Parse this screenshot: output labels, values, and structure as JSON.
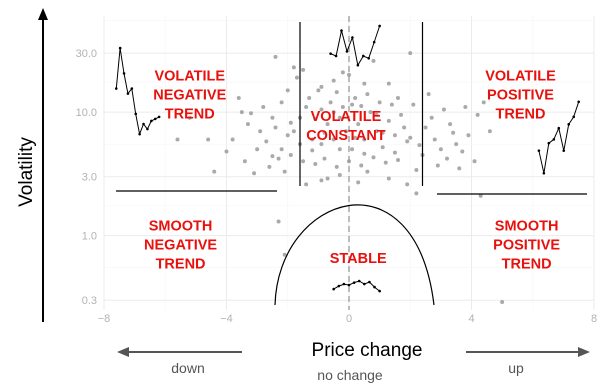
{
  "chart_data": {
    "type": "scatter",
    "xlabel": "Price change",
    "ylabel": "Volatility",
    "xlim": [
      -8,
      8
    ],
    "ylim": [
      0.25,
      60
    ],
    "y_scale": "log",
    "x_ticks": [
      {
        "value": -8,
        "label": "−8"
      },
      {
        "value": -4,
        "label": "−4"
      },
      {
        "value": 0,
        "label": "0"
      },
      {
        "value": 4,
        "label": "4"
      },
      {
        "value": 8,
        "label": "8"
      }
    ],
    "y_ticks": [
      {
        "value": 0.3,
        "label": "0.3"
      },
      {
        "value": 1.0,
        "label": "1.0"
      },
      {
        "value": 3.0,
        "label": "3.0"
      },
      {
        "value": 10.0,
        "label": "10.0"
      },
      {
        "value": 30.0,
        "label": "30.0"
      }
    ],
    "grid": true,
    "regions": [
      {
        "id": "volatile-negative-trend",
        "lines": [
          "VOLATILE",
          "NEGATIVE",
          "TREND"
        ],
        "x": -5.2,
        "y": 18
      },
      {
        "id": "volatile-constant",
        "lines": [
          "VOLATILE",
          "CONSTANT"
        ],
        "x": -0.1,
        "y": 8.5
      },
      {
        "id": "volatile-positive-trend",
        "lines": [
          "VOLATILE",
          "POSITIVE",
          "TREND"
        ],
        "x": 5.6,
        "y": 18
      },
      {
        "id": "smooth-negative-trend",
        "lines": [
          "SMOOTH",
          "NEGATIVE",
          "TREND"
        ],
        "x": -5.5,
        "y": 1.1
      },
      {
        "id": "stable",
        "lines": [
          "STABLE"
        ],
        "x": 0.3,
        "y": 0.6
      },
      {
        "id": "smooth-positive-trend",
        "lines": [
          "SMOOTH",
          "POSITIVE",
          "TREND"
        ],
        "x": 5.8,
        "y": 1.1
      }
    ],
    "direction_labels": {
      "down": "down",
      "no_change": "no change",
      "up": "up"
    },
    "points": [
      [
        -1.0,
        15
      ],
      [
        -1.6,
        9
      ],
      [
        -1.8,
        7
      ],
      [
        -1.4,
        11
      ],
      [
        -1.2,
        6
      ],
      [
        -0.9,
        5.5
      ],
      [
        -0.7,
        8
      ],
      [
        -0.5,
        6
      ],
      [
        -0.3,
        9
      ],
      [
        -0.1,
        7
      ],
      [
        0.1,
        5
      ],
      [
        0.3,
        8
      ],
      [
        0.5,
        6
      ],
      [
        0.7,
        10
      ],
      [
        0.9,
        7
      ],
      [
        1.1,
        5.2
      ],
      [
        1.3,
        8.5
      ],
      [
        1.5,
        6.5
      ],
      [
        1.7,
        9.5
      ],
      [
        1.9,
        5.8
      ],
      [
        -1.9,
        4.5
      ],
      [
        -1.5,
        4
      ],
      [
        -1.1,
        3.8
      ],
      [
        -0.8,
        4.2
      ],
      [
        -0.4,
        3.6
      ],
      [
        0.0,
        4.0
      ],
      [
        0.4,
        3.7
      ],
      [
        0.8,
        4.3
      ],
      [
        1.2,
        3.9
      ],
      [
        1.6,
        4.1
      ],
      [
        -0.6,
        12
      ],
      [
        0.2,
        13
      ],
      [
        0.6,
        14
      ],
      [
        -0.2,
        11
      ],
      [
        1.0,
        12
      ],
      [
        -1.3,
        13
      ],
      [
        1.4,
        11.5
      ],
      [
        -0.5,
        18
      ],
      [
        0.0,
        20
      ],
      [
        -1.7,
        19
      ],
      [
        -2.0,
        6.5
      ],
      [
        -2.2,
        5
      ],
      [
        -2.4,
        7.5
      ],
      [
        -2.1,
        3.3
      ],
      [
        -2.3,
        4.2
      ],
      [
        -2.5,
        9
      ],
      [
        -2.6,
        3.6
      ],
      [
        -2.2,
        12
      ],
      [
        -2.0,
        15
      ],
      [
        -2.8,
        11
      ],
      [
        2.0,
        6.2
      ],
      [
        2.3,
        5.4
      ],
      [
        2.5,
        7.5
      ],
      [
        2.2,
        3.4
      ],
      [
        2.4,
        4.5
      ],
      [
        2.7,
        9
      ],
      [
        2.9,
        3.7
      ],
      [
        2.1,
        11.5
      ],
      [
        2.6,
        14
      ],
      [
        3.0,
        5
      ],
      [
        3.2,
        4.2
      ],
      [
        3.3,
        8
      ],
      [
        3.5,
        5.5
      ],
      [
        3.6,
        3.5
      ],
      [
        3.8,
        11
      ],
      [
        3.9,
        6.5
      ],
      [
        4.1,
        4
      ],
      [
        4.2,
        9.5
      ],
      [
        4.4,
        12
      ],
      [
        4.6,
        7
      ],
      [
        -3.0,
        5
      ],
      [
        -3.3,
        8
      ],
      [
        -3.4,
        4
      ],
      [
        -3.6,
        13
      ],
      [
        -3.8,
        6
      ],
      [
        -3.1,
        3.2
      ],
      [
        -2.9,
        7
      ],
      [
        -3.5,
        10
      ],
      [
        -4.4,
        3.3
      ],
      [
        -4.6,
        6
      ],
      [
        -5.2,
        9
      ],
      [
        -5.6,
        6
      ],
      [
        -2.4,
        28
      ],
      [
        -1.8,
        23
      ],
      [
        -0.2,
        21
      ],
      [
        0.8,
        26
      ],
      [
        2.0,
        30
      ],
      [
        -1.5,
        22
      ],
      [
        1.3,
        17
      ],
      [
        -0.9,
        16
      ],
      [
        0.5,
        17
      ],
      [
        -0.7,
        2.9
      ],
      [
        0.3,
        2.7
      ],
      [
        -1.4,
        2.6
      ],
      [
        1.3,
        2.9
      ],
      [
        -0.5,
        10
      ],
      [
        0.9,
        9.5
      ],
      [
        -0.9,
        10.5
      ],
      [
        1.6,
        13
      ],
      [
        -1.6,
        5.5
      ],
      [
        -0.3,
        5.0
      ],
      [
        0.5,
        4.6
      ],
      [
        1.1,
        6.8
      ],
      [
        -1.1,
        8.8
      ],
      [
        0.2,
        6.2
      ],
      [
        -0.8,
        6.8
      ],
      [
        1.5,
        4.7
      ],
      [
        -1.2,
        4.9
      ],
      [
        0.6,
        3.3
      ],
      [
        -0.3,
        3.1
      ],
      [
        2.8,
        6.0
      ],
      [
        3.1,
        10.5
      ],
      [
        3.4,
        6.8
      ],
      [
        3.7,
        4.8
      ],
      [
        -2.7,
        5.8
      ],
      [
        -3.2,
        9.8
      ],
      [
        -2.5,
        4.4
      ],
      [
        -4.0,
        4.8
      ],
      [
        2.2,
        2.2
      ],
      [
        -2.3,
        1.3
      ],
      [
        -2.1,
        0.7
      ],
      [
        4.3,
        2.1
      ],
      [
        5.0,
        0.29
      ],
      [
        -0.9,
        2.8
      ],
      [
        1.9,
        2.6
      ],
      [
        0.1,
        11.5
      ],
      [
        -0.4,
        14.5
      ],
      [
        0.4,
        11.2
      ],
      [
        1.8,
        7.5
      ],
      [
        -1.9,
        8.2
      ]
    ],
    "sparklines": [
      {
        "id": "sparkline-volatile-negative",
        "x0": -7.6,
        "x1": -6.2,
        "y0": 5,
        "y1": 33,
        "values": [
          0.6,
          1.0,
          0.75,
          0.55,
          0.6,
          0.35,
          0.15,
          0.25,
          0.2,
          0.28,
          0.3,
          0.32
        ]
      },
      {
        "id": "sparkline-volatile-constant",
        "x0": -0.6,
        "x1": 1.0,
        "y0": 22,
        "y1": 52,
        "values": [
          0.35,
          0.3,
          0.85,
          0.4,
          0.7,
          0.1,
          0.3,
          0.25,
          0.6,
          0.95
        ]
      },
      {
        "id": "sparkline-volatile-positive",
        "x0": 6.2,
        "x1": 7.5,
        "y0": 3.2,
        "y1": 13,
        "values": [
          0.3,
          0.0,
          0.4,
          0.45,
          0.6,
          0.3,
          0.65,
          0.75,
          0.95
        ]
      },
      {
        "id": "sparkline-stable",
        "x0": -0.5,
        "x1": 1.0,
        "y0": 0.33,
        "y1": 0.48,
        "values": [
          0.3,
          0.45,
          0.55,
          0.5,
          0.62,
          0.7,
          0.55,
          0.65,
          0.4,
          0.2
        ]
      }
    ]
  }
}
